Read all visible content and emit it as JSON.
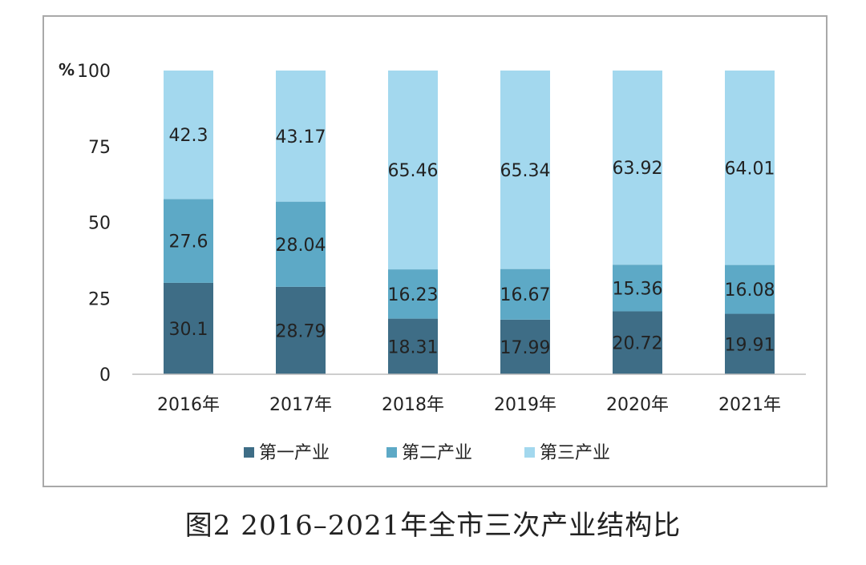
{
  "caption": "图2 2016–2021年全市三次产业结构比",
  "chart_data": {
    "type": "bar",
    "stacked": true,
    "unit_label": "%",
    "categories": [
      "2016年",
      "2017年",
      "2018年",
      "2019年",
      "2020年",
      "2021年"
    ],
    "yticks": [
      0,
      25,
      50,
      75,
      100
    ],
    "ylim": [
      0,
      100
    ],
    "grid": false,
    "legend_position": "bottom",
    "series": [
      {
        "name": "第一产业",
        "color": "#3e6d86",
        "values": [
          "30.1",
          "28.79",
          "18.31",
          "17.99",
          "20.72",
          "19.91"
        ]
      },
      {
        "name": "第二产业",
        "color": "#5da9c6",
        "values": [
          "27.6",
          "28.04",
          "16.23",
          "16.67",
          "15.36",
          "16.08"
        ]
      },
      {
        "name": "第三产业",
        "color": "#a3d8ee",
        "values": [
          "42.3",
          "43.17",
          "65.46",
          "65.34",
          "63.92",
          "64.01"
        ]
      }
    ]
  }
}
